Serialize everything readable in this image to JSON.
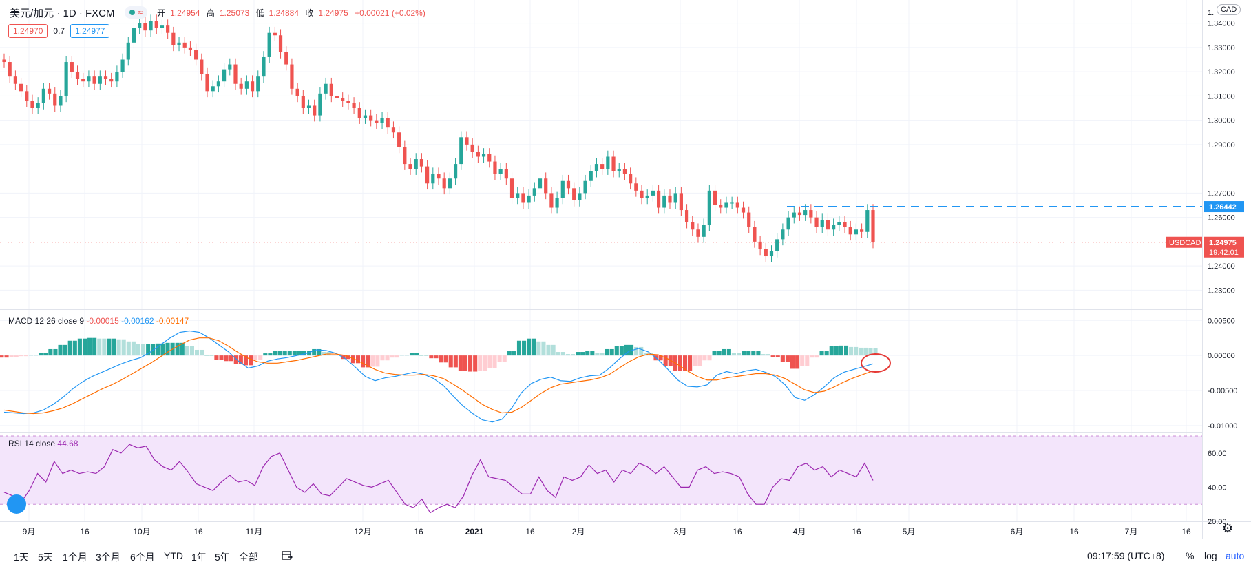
{
  "header": {
    "symbol": "美元/加元 · 1D · FXCM",
    "status_wave": "≈",
    "ohlc": {
      "o_label": "开",
      "o": "=1.24954",
      "h_label": "高",
      "h": "=1.25073",
      "l_label": "低",
      "l": "=1.24884",
      "c_label": "收",
      "c": "=1.24975",
      "change": "+0.00021 (+0.02%)"
    }
  },
  "trade": {
    "sell": "1.24970",
    "spread": "0.7",
    "buy": "1.24977"
  },
  "currency_button": "CAD",
  "price_axis": {
    "currency_top": "1.",
    "ticks": [
      1.34,
      1.33,
      1.32,
      1.31,
      1.3,
      1.29,
      1.27,
      1.26,
      1.24,
      1.23
    ],
    "ticks_text": [
      "1.34000",
      "1.33000",
      "1.32000",
      "1.31000",
      "1.30000",
      "1.29000",
      "1.27000",
      "1.26000",
      "1.24000",
      "1.23000"
    ],
    "hline_label": "1.26442",
    "last_tag": "USDCAD",
    "last_price": "1.24975",
    "countdown": "19:42:01"
  },
  "macd": {
    "title": "MACD 12 26 close 9",
    "hist": "-0.00015",
    "macd": "-0.00162",
    "signal": "-0.00147",
    "ticks_text": [
      "0.00500",
      "0.00000",
      "-0.00500",
      "-0.01000"
    ]
  },
  "rsi": {
    "title": "RSI 14 close",
    "value": "44.68",
    "ticks_text": [
      "60.00",
      "40.00",
      "20.00"
    ]
  },
  "time_axis": [
    "9月",
    "16",
    "10月",
    "16",
    "11月",
    "12月",
    "16",
    "2021",
    "16",
    "2月",
    "3月",
    "16",
    "4月",
    "16",
    "5月",
    "6月",
    "16",
    "7月",
    "16"
  ],
  "bottom": {
    "ranges": [
      "1天",
      "5天",
      "1个月",
      "3个月",
      "6个月",
      "YTD",
      "1年",
      "5年",
      "全部"
    ],
    "goto_icon": "goto-date-icon",
    "clock": "09:17:59 (UTC+8)",
    "pct": "%",
    "log": "log",
    "auto": "auto"
  },
  "colors": {
    "up": "#26a69a",
    "down": "#ef5350",
    "macd": "#2196f3",
    "signal": "#ff6d00",
    "rsi": "#9c27b0",
    "rsi_band": "#f3e5fb"
  },
  "chart_data": {
    "type": "candlestick",
    "symbol": "USDCAD",
    "interval": "1D",
    "ylim": [
      1.225,
      1.345
    ],
    "horizontal_line": 1.26442,
    "last_price": 1.24975,
    "close_series": [
      1.324,
      1.318,
      1.315,
      1.312,
      1.308,
      1.305,
      1.307,
      1.313,
      1.311,
      1.306,
      1.31,
      1.324,
      1.32,
      1.317,
      1.316,
      1.318,
      1.315,
      1.318,
      1.317,
      1.316,
      1.32,
      1.325,
      1.332,
      1.338,
      1.34,
      1.337,
      1.341,
      1.338,
      1.339,
      1.336,
      1.331,
      1.332,
      1.33,
      1.329,
      1.325,
      1.319,
      1.312,
      1.314,
      1.316,
      1.321,
      1.323,
      1.315,
      1.313,
      1.316,
      1.312,
      1.318,
      1.326,
      1.336,
      1.335,
      1.328,
      1.323,
      1.313,
      1.31,
      1.305,
      1.306,
      1.302,
      1.311,
      1.315,
      1.31,
      1.309,
      1.308,
      1.307,
      1.305,
      1.301,
      1.302,
      1.3,
      1.299,
      1.301,
      1.297,
      1.295,
      1.289,
      1.282,
      1.28,
      1.284,
      1.281,
      1.274,
      1.278,
      1.276,
      1.272,
      1.276,
      1.282,
      1.293,
      1.29,
      1.287,
      1.285,
      1.286,
      1.283,
      1.278,
      1.28,
      1.276,
      1.268,
      1.27,
      1.266,
      1.269,
      1.272,
      1.276,
      1.27,
      1.264,
      1.268,
      1.275,
      1.272,
      1.267,
      1.27,
      1.275,
      1.279,
      1.282,
      1.28,
      1.285,
      1.279,
      1.28,
      1.278,
      1.274,
      1.271,
      1.268,
      1.269,
      1.271,
      1.264,
      1.269,
      1.266,
      1.27,
      1.263,
      1.258,
      1.255,
      1.252,
      1.257,
      1.271,
      1.265,
      1.264,
      1.266,
      1.266,
      1.264,
      1.262,
      1.256,
      1.25,
      1.247,
      1.244,
      1.246,
      1.251,
      1.255,
      1.26,
      1.262,
      1.261,
      1.263,
      1.26,
      1.256,
      1.259,
      1.255,
      1.257,
      1.258,
      1.256,
      1.253,
      1.255,
      1.254,
      1.263,
      1.2498
    ],
    "macd": {
      "ylim": [
        -0.0109,
        0.0065
      ],
      "macd_line": [
        -0.0081,
        -0.0082,
        -0.0083,
        -0.0082,
        -0.0078,
        -0.007,
        -0.006,
        -0.0048,
        -0.0038,
        -0.003,
        -0.0024,
        -0.0018,
        -0.0012,
        -0.0007,
        -0.0003,
        0.0005,
        0.0015,
        0.0025,
        0.0033,
        0.0035,
        0.0033,
        0.0025,
        0.0015,
        0.0005,
        -0.0008,
        -0.0018,
        -0.0015,
        -0.0008,
        -0.0005,
        -0.0003,
        0.0,
        0.0003,
        0.0008,
        0.0007,
        0.0003,
        -0.0005,
        -0.0017,
        -0.003,
        -0.0036,
        -0.0032,
        -0.003,
        -0.0027,
        -0.0024,
        -0.0027,
        -0.0033,
        -0.0043,
        -0.0058,
        -0.0072,
        -0.0083,
        -0.0092,
        -0.0095,
        -0.0091,
        -0.0075,
        -0.0053,
        -0.004,
        -0.0034,
        -0.0031,
        -0.0036,
        -0.0037,
        -0.0032,
        -0.0029,
        -0.0028,
        -0.0018,
        -0.0005,
        0.0006,
        0.001,
        0.0005,
        -0.0006,
        -0.002,
        -0.0035,
        -0.0044,
        -0.0045,
        -0.0042,
        -0.0028,
        -0.0023,
        -0.0026,
        -0.0022,
        -0.002,
        -0.0024,
        -0.003,
        -0.0042,
        -0.006,
        -0.0064,
        -0.0056,
        -0.0045,
        -0.0032,
        -0.0024,
        -0.002,
        -0.0016,
        -0.0012
      ],
      "signal_line": [
        -0.0078,
        -0.008,
        -0.0082,
        -0.0083,
        -0.0082,
        -0.0079,
        -0.0075,
        -0.0069,
        -0.0062,
        -0.0055,
        -0.0048,
        -0.0042,
        -0.0035,
        -0.0027,
        -0.0019,
        -0.0011,
        -0.0002,
        0.0007,
        0.0015,
        0.0022,
        0.0025,
        0.0025,
        0.0021,
        0.0013,
        0.0004,
        -0.0004,
        -0.0009,
        -0.0011,
        -0.0011,
        -0.0009,
        -0.0007,
        -0.0004,
        -0.0001,
        0.0002,
        0.0002,
        0.0,
        -0.0006,
        -0.0013,
        -0.002,
        -0.0025,
        -0.0027,
        -0.0028,
        -0.0028,
        -0.0027,
        -0.0029,
        -0.0033,
        -0.0041,
        -0.005,
        -0.006,
        -0.007,
        -0.0077,
        -0.0082,
        -0.0081,
        -0.0074,
        -0.0064,
        -0.0054,
        -0.0046,
        -0.0041,
        -0.0039,
        -0.0037,
        -0.0035,
        -0.0032,
        -0.0027,
        -0.0018,
        -0.0009,
        -0.0002,
        0.0002,
        0.0001,
        -0.0005,
        -0.0013,
        -0.0022,
        -0.003,
        -0.0035,
        -0.0035,
        -0.0032,
        -0.003,
        -0.0028,
        -0.0026,
        -0.0026,
        -0.0028,
        -0.0033,
        -0.0041,
        -0.0049,
        -0.0053,
        -0.0051,
        -0.0045,
        -0.0038,
        -0.0032,
        -0.0027,
        -0.0022
      ]
    },
    "rsi": {
      "ylim": [
        20,
        72
      ],
      "upper_band": 70,
      "lower_band": 30,
      "values": [
        37,
        35,
        31,
        38,
        48,
        43,
        55,
        48,
        50,
        48,
        49,
        48,
        52,
        62,
        60,
        65,
        63,
        64,
        56,
        52,
        50,
        55,
        49,
        42,
        40,
        38,
        43,
        47,
        43,
        44,
        41,
        52,
        58,
        60,
        50,
        40,
        37,
        42,
        36,
        35,
        40,
        45,
        43,
        41,
        40,
        42,
        44,
        37,
        30,
        28,
        33,
        25,
        28,
        30,
        28,
        35,
        47,
        56,
        46,
        45,
        44,
        40,
        36,
        36,
        46,
        38,
        34,
        46,
        44,
        46,
        53,
        48,
        50,
        43,
        50,
        48,
        54,
        52,
        48,
        52,
        46,
        40,
        40,
        50,
        52,
        48,
        49,
        48,
        46,
        36,
        30,
        30,
        40,
        45,
        44,
        52,
        54,
        50,
        52,
        46,
        50,
        48,
        46,
        54,
        44
      ]
    }
  }
}
